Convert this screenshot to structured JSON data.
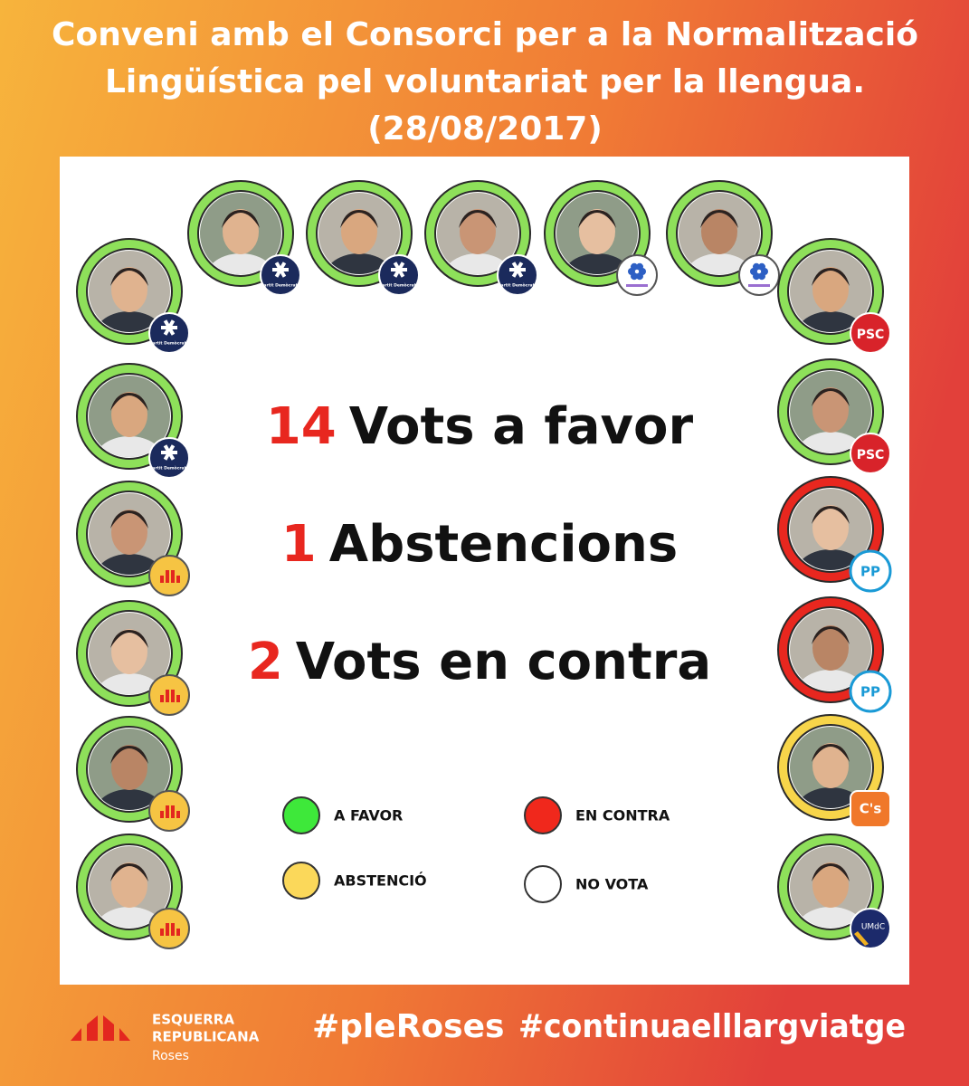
{
  "header": {
    "title_lines": [
      "Conveni amb el Consorci per a la Normalització",
      "Lingüística pel voluntariat per la llengua.",
      "(28/08/2017)"
    ]
  },
  "members": [
    {
      "ring_color": "#8ee05a",
      "badge": "pd",
      "badge_text": "Partit Demòcrata"
    },
    {
      "ring_color": "#8ee05a",
      "badge": "pd",
      "badge_text": "Partit Demòcrata"
    },
    {
      "ring_color": "#8ee05a",
      "badge": "pd",
      "badge_text": "Partit Demòcrata"
    },
    {
      "ring_color": "#8ee05a",
      "badge": "flower"
    },
    {
      "ring_color": "#8ee05a",
      "badge": "flower"
    },
    {
      "ring_color": "#8ee05a",
      "badge": "pd",
      "badge_text": "Partit Demòcrata"
    },
    {
      "ring_color": "#8ee05a",
      "badge": "pd",
      "badge_text": "Partit Demòcrata"
    },
    {
      "ring_color": "#8ee05a",
      "badge": "erc"
    },
    {
      "ring_color": "#8ee05a",
      "badge": "erc"
    },
    {
      "ring_color": "#8ee05a",
      "badge": "erc"
    },
    {
      "ring_color": "#8ee05a",
      "badge": "erc"
    },
    {
      "ring_color": "#8ee05a",
      "badge": "psc",
      "badge_text": "PSC"
    },
    {
      "ring_color": "#8ee05a",
      "badge": "psc",
      "badge_text": "PSC"
    },
    {
      "ring_color": "#e8271f",
      "badge": "pp",
      "badge_text": "PP"
    },
    {
      "ring_color": "#e8271f",
      "badge": "pp",
      "badge_text": "PP"
    },
    {
      "ring_color": "#f7d54a",
      "badge": "cs",
      "badge_text": "C's"
    },
    {
      "ring_color": "#8ee05a",
      "badge": "umdc",
      "badge_text": "UMdC"
    }
  ],
  "results": [
    {
      "count": 14,
      "label": "Vots a favor"
    },
    {
      "count": 1,
      "label": "Abstencions"
    },
    {
      "count": 2,
      "label": "Vots en contra"
    }
  ],
  "legend": [
    {
      "label": "A FAVOR",
      "color": "#3ee83a"
    },
    {
      "label": "EN CONTRA",
      "color": "#f0281c"
    },
    {
      "label": "ABSTENCIÓ",
      "color": "#fbd85a"
    },
    {
      "label": "NO VOTA",
      "color": "#ffffff"
    }
  ],
  "footer": {
    "logo": [
      "ESQUERRA",
      "REPUBLICANA",
      "Roses"
    ],
    "hashtags": [
      "#pleRoses",
      "#continuaelllargviatge"
    ]
  }
}
